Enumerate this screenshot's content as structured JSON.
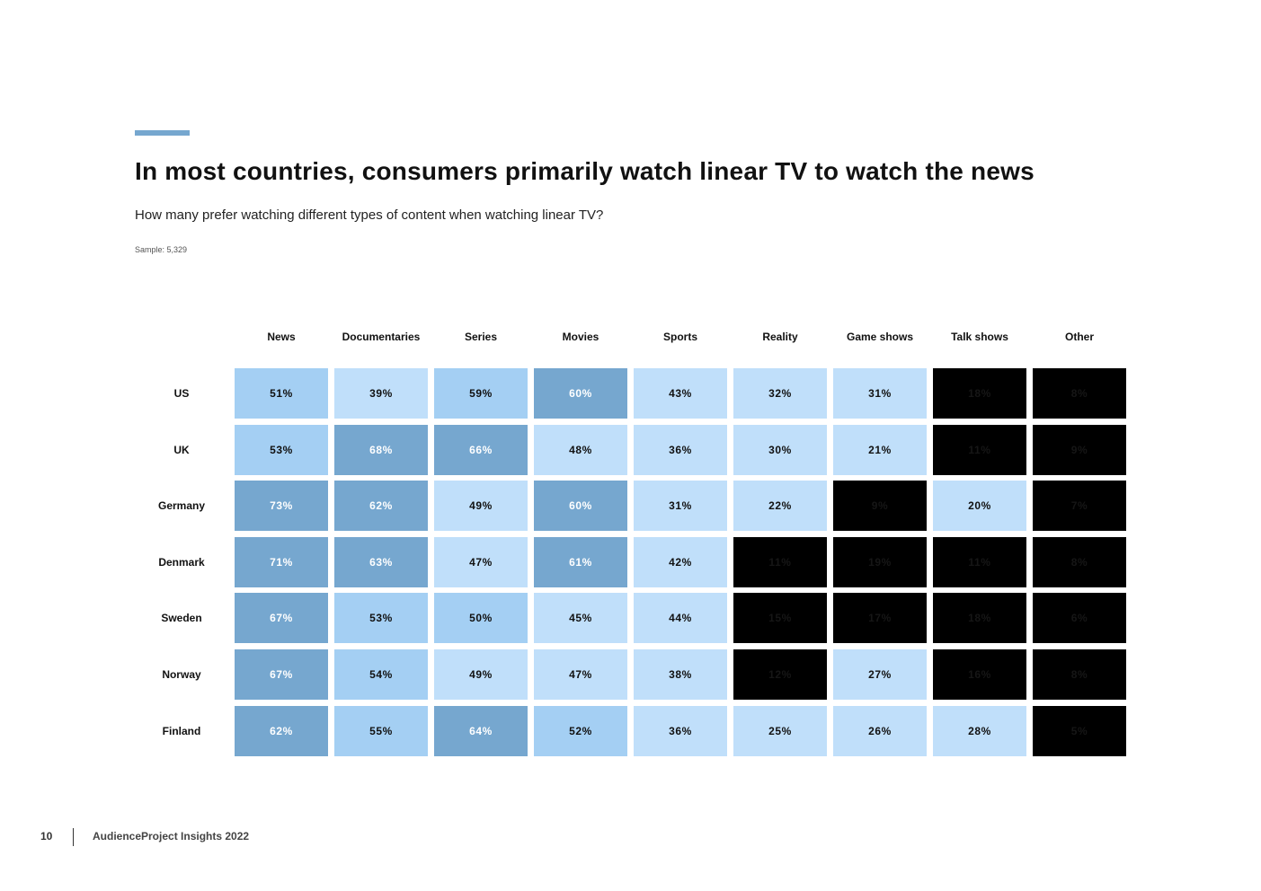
{
  "page": {
    "title": "In most countries, consumers primarily watch linear TV to watch the news",
    "subtitle": "How many prefer watching different types of content when watching linear TV?",
    "sample": "Sample: 5,329",
    "footer_page": "10",
    "footer_text": "AudienceProject Insights 2022"
  },
  "colors": {
    "accent": "#76a7cf",
    "high": "#76a7cf",
    "mid": "#a4cff3",
    "low": "#c0dffa",
    "lowest": "#000000"
  },
  "chart_data": {
    "type": "heatmap",
    "title": "In most countries, consumers primarily watch linear TV to watch the news",
    "columns": [
      "News",
      "Documentaries",
      "Series",
      "Movies",
      "Sports",
      "Reality",
      "Game shows",
      "Talk shows",
      "Other"
    ],
    "rows": [
      "US",
      "UK",
      "Germany",
      "Denmark",
      "Sweden",
      "Norway",
      "Finland"
    ],
    "values": [
      [
        51,
        39,
        59,
        60,
        43,
        32,
        31,
        18,
        8
      ],
      [
        53,
        68,
        66,
        48,
        36,
        30,
        21,
        11,
        9
      ],
      [
        73,
        62,
        49,
        60,
        31,
        22,
        9,
        20,
        7
      ],
      [
        71,
        63,
        47,
        61,
        42,
        11,
        19,
        11,
        8
      ],
      [
        67,
        53,
        50,
        45,
        44,
        15,
        17,
        18,
        6
      ],
      [
        67,
        54,
        49,
        47,
        38,
        12,
        27,
        16,
        8
      ],
      [
        62,
        55,
        64,
        52,
        36,
        25,
        26,
        28,
        5
      ]
    ],
    "labels": [
      [
        "51%",
        "39%",
        "59%",
        "60%",
        "43%",
        "32%",
        "31%",
        "18%",
        "8%"
      ],
      [
        "53%",
        "68%",
        "66%",
        "48%",
        "36%",
        "30%",
        "21%",
        "11%",
        "9%"
      ],
      [
        "73%",
        "62%",
        "49%",
        "60%",
        "31%",
        "22%",
        "9%",
        "20%",
        "7%"
      ],
      [
        "71%",
        "63%",
        "47%",
        "61%",
        "42%",
        "11%",
        "19%",
        "11%",
        "8%"
      ],
      [
        "67%",
        "53%",
        "50%",
        "45%",
        "44%",
        "15%",
        "17%",
        "18%",
        "6%"
      ],
      [
        "67%",
        "54%",
        "49%",
        "47%",
        "38%",
        "12%",
        "27%",
        "16%",
        "8%"
      ],
      [
        "62%",
        "55%",
        "64%",
        "52%",
        "36%",
        "25%",
        "26%",
        "28%",
        "5%"
      ]
    ],
    "levels": [
      [
        "mid",
        "light",
        "mid",
        "dark",
        "light",
        "light",
        "light",
        "black",
        "black"
      ],
      [
        "mid",
        "dark",
        "dark",
        "light",
        "light",
        "light",
        "light",
        "black",
        "black"
      ],
      [
        "dark",
        "dark",
        "light",
        "dark",
        "light",
        "light",
        "black",
        "light",
        "black"
      ],
      [
        "dark",
        "dark",
        "light",
        "dark",
        "light",
        "black",
        "black",
        "black",
        "black"
      ],
      [
        "dark",
        "mid",
        "mid",
        "light",
        "light",
        "black",
        "black",
        "black",
        "black"
      ],
      [
        "dark",
        "mid",
        "light",
        "light",
        "light",
        "black",
        "light",
        "black",
        "black"
      ],
      [
        "dark",
        "mid",
        "dark",
        "mid",
        "light",
        "light",
        "light",
        "light",
        "black"
      ]
    ]
  }
}
